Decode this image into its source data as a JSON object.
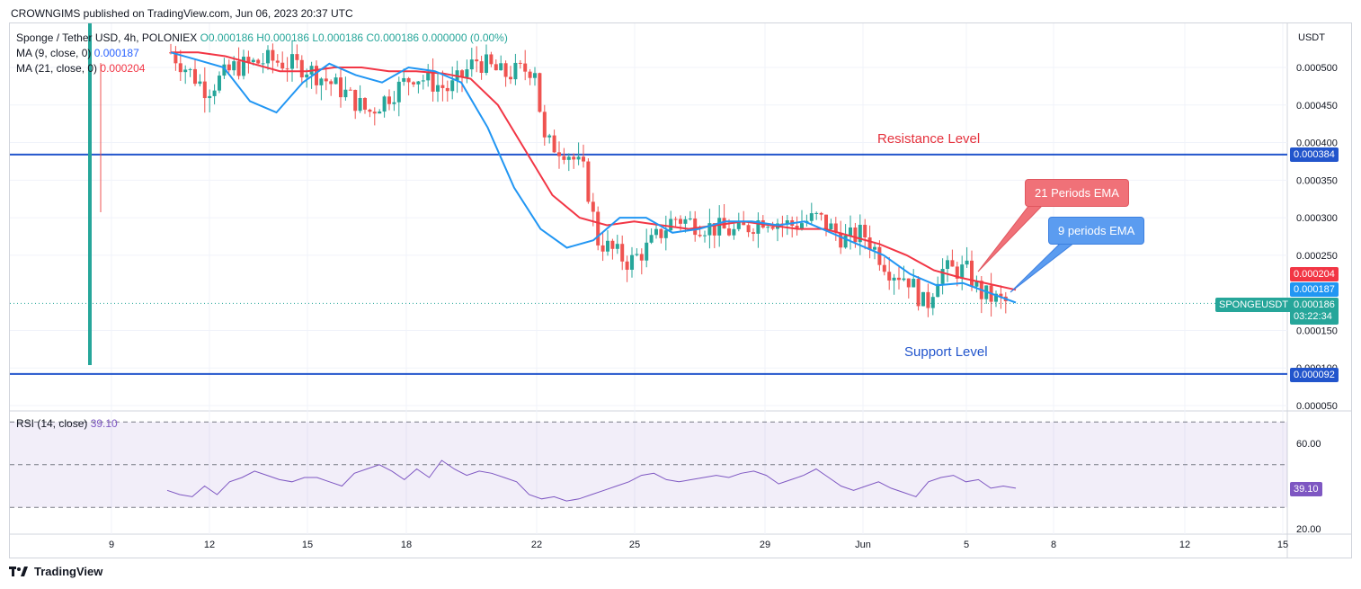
{
  "header": {
    "published": "CROWNGIMS published on TradingView.com, Jun 06, 2023 20:37 UTC"
  },
  "legend": {
    "symbol": "Sponge / Tether USD, 4h, POLONIEX",
    "ohlc": "O0.000186 H0.000186 L0.000186 C0.000186 0.000000 (0.00%)",
    "ma9_label": "MA (9, close, 0)",
    "ma9_value": "0.000187",
    "ma21_label": "MA (21, close, 0)",
    "ma21_value": "0.000204",
    "rsi_label": "RSI (14, close)",
    "rsi_value": "39.10"
  },
  "price_axis": {
    "currency": "USDT",
    "ticks": [
      "0.000500",
      "0.000450",
      "0.000400",
      "0.000350",
      "0.000300",
      "0.000250",
      "0.000150",
      "0.000100",
      "0.000050"
    ]
  },
  "rsi_axis": {
    "ticks": [
      "60.00",
      "20.00"
    ]
  },
  "time_axis": {
    "ticks": [
      "9",
      "12",
      "15",
      "18",
      "22",
      "25",
      "29",
      "Jun",
      "5",
      "8",
      "12",
      "15"
    ]
  },
  "tags": {
    "resistance": "0.000384",
    "support": "0.000092",
    "ma21": "0.000204",
    "ma9": "0.000187",
    "symbol_name": "SPONGEUSDT",
    "last_price": "0.000186",
    "countdown": "03:22:34",
    "rsi": "39.10"
  },
  "annotations": {
    "resistance_text": "Resistance Level",
    "support_text": "Support Level",
    "ema21_text": "21 Periods EMA",
    "ema9_text": "9 periods EMA"
  },
  "footer": {
    "brand": "TradingView"
  },
  "colors": {
    "up": "#26a69a",
    "down": "#ef5350",
    "ema9": "#2196f3",
    "ema21": "#f23645",
    "levels": "#2255cc",
    "rsi": "#7e57c2"
  },
  "chart_data": {
    "type": "candlestick",
    "title": "",
    "x_ticks": [
      "9",
      "12",
      "15",
      "18",
      "22",
      "25",
      "29",
      "Jun",
      "5",
      "8",
      "12",
      "15"
    ],
    "y_range": [
      5e-05,
      0.00055
    ],
    "levels": [
      {
        "name": "Resistance Level",
        "value": 0.000384
      },
      {
        "name": "Support Level",
        "value": 9.2e-05
      }
    ],
    "ema9": [
      0.00052,
      0.00051,
      0.0005,
      0.000455,
      0.00044,
      0.00048,
      0.000505,
      0.00049,
      0.00048,
      0.0005,
      0.000495,
      0.00048,
      0.00042,
      0.00034,
      0.000285,
      0.00026,
      0.00027,
      0.0003,
      0.0003,
      0.00028,
      0.000285,
      0.000295,
      0.000295,
      0.00029,
      0.000295,
      0.00028,
      0.000265,
      0.00025,
      0.000225,
      0.00021,
      0.000213,
      0.0002,
      0.000187
    ],
    "ema21": [
      0.00052,
      0.00052,
      0.000515,
      0.000505,
      0.000495,
      0.000495,
      0.0005,
      0.0005,
      0.000495,
      0.000495,
      0.000492,
      0.000485,
      0.00045,
      0.00039,
      0.00033,
      0.0003,
      0.00029,
      0.000295,
      0.00029,
      0.000285,
      0.00029,
      0.000295,
      0.00029,
      0.000285,
      0.000285,
      0.000275,
      0.000265,
      0.00025,
      0.00023,
      0.00022,
      0.000212,
      0.000204
    ],
    "rsi": {
      "label": "RSI (14, close)",
      "last": 39.1,
      "bands": [
        30,
        50,
        70
      ],
      "values": [
        38,
        36,
        35,
        40,
        36,
        42,
        44,
        47,
        45,
        43,
        42,
        44,
        44,
        42,
        40,
        46,
        48,
        50,
        47,
        43,
        48,
        44,
        52,
        48,
        45,
        47,
        46,
        44,
        42,
        36,
        34,
        35,
        33,
        34,
        36,
        38,
        40,
        42,
        45,
        46,
        43,
        42,
        43,
        44,
        45,
        44,
        46,
        47,
        45,
        41,
        43,
        45,
        48,
        44,
        40,
        38,
        40,
        42,
        39,
        37,
        35,
        42,
        44,
        45,
        42,
        43,
        39,
        40,
        39
      ]
    }
  }
}
